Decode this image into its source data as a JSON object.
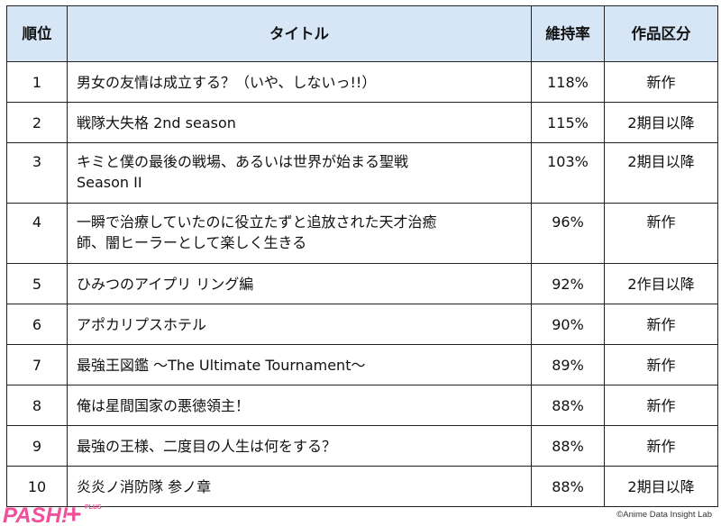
{
  "table": {
    "headers": {
      "rank": "順位",
      "title": "タイトル",
      "rate": "維持率",
      "category": "作品区分"
    },
    "rows": [
      {
        "rank": "1",
        "title": "男女の友情は成立する？（いや、しないっ!!）",
        "rate": "118%",
        "category": "新作"
      },
      {
        "rank": "2",
        "title": "戦隊大失格 2nd season",
        "rate": "115%",
        "category": "2期目以降"
      },
      {
        "rank": "3",
        "title": "キミと僕の最後の戦場、あるいは世界が始まる聖戦\nSeason II",
        "rate": "103%",
        "category": "2期目以降"
      },
      {
        "rank": "4",
        "title": "一瞬で治療していたのに役立たずと追放された天才治癒\n師、闇ヒーラーとして楽しく生きる",
        "rate": "96%",
        "category": "新作"
      },
      {
        "rank": "5",
        "title": "ひみつのアイプリ リング編",
        "rate": "92%",
        "category": "2作目以降"
      },
      {
        "rank": "6",
        "title": "アポカリプスホテル",
        "rate": "90%",
        "category": "新作"
      },
      {
        "rank": "7",
        "title": "最強王図鑑 〜The Ultimate Tournament〜",
        "rate": "89%",
        "category": "新作"
      },
      {
        "rank": "8",
        "title": "俺は星間国家の悪徳領主！",
        "rate": "88%",
        "category": "新作"
      },
      {
        "rank": "9",
        "title": "最強の王様、二度目の人生は何をする？",
        "rate": "88%",
        "category": "新作"
      },
      {
        "rank": "10",
        "title": "炎炎ノ消防隊 参ノ章",
        "rate": "88%",
        "category": "2期目以降"
      }
    ]
  },
  "footer": {
    "logo_text": "PASH!",
    "logo_plus": "+",
    "logo_plus_small": "PLUS",
    "credit": "©Anime Data Insight Lab"
  },
  "colors": {
    "header_bg": "#d6e6f7",
    "logo_pink": "#f0509a"
  }
}
